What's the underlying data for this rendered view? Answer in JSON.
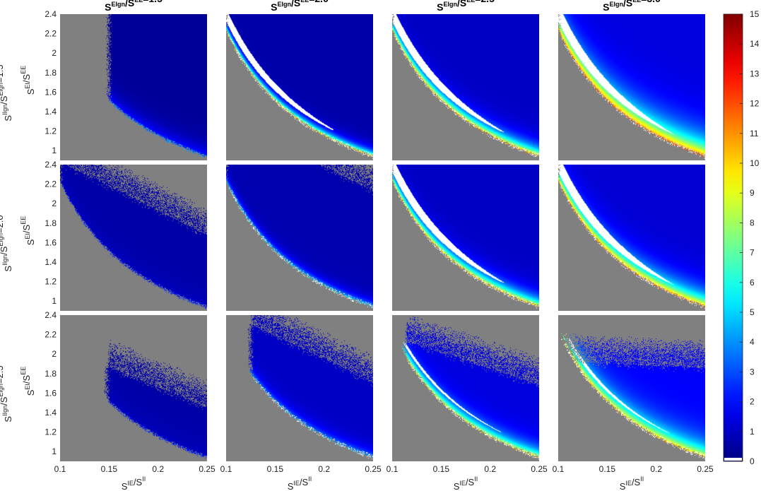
{
  "chart_data": {
    "type": "heatmap",
    "layout": "3x4 grid of panels",
    "col_titles": [
      {
        "base": "S",
        "sup1": "EIgn",
        "mid": "/S",
        "sup2": "EE",
        "tail": "=1.5"
      },
      {
        "base": "S",
        "sup1": "EIgn",
        "mid": "/S",
        "sup2": "EE",
        "tail": "=2.0"
      },
      {
        "base": "S",
        "sup1": "EIgn",
        "mid": "/S",
        "sup2": "EE",
        "tail": "=2.5"
      },
      {
        "base": "S",
        "sup1": "EIgn",
        "mid": "/S",
        "sup2": "EE",
        "tail": "=3.0"
      }
    ],
    "row_titles": [
      {
        "base": "S",
        "sup1": "IIgn",
        "mid": "/S",
        "sup2": "EIgn",
        "tail": "=1.5"
      },
      {
        "base": "S",
        "sup1": "IIgn",
        "mid": "/S",
        "sup2": "EIgn",
        "tail": "=2.0"
      },
      {
        "base": "S",
        "sup1": "IIgn",
        "mid": "/S",
        "sup2": "EIgn",
        "tail": "=2.5"
      }
    ],
    "xlabel": {
      "base": "S",
      "sup1": "IE",
      "mid": "/S",
      "sup2": "II"
    },
    "ylabel": {
      "base": "S",
      "sup1": "EI",
      "mid": "/S",
      "sup2": "EE"
    },
    "xlim": [
      0.1,
      0.25
    ],
    "ylim": [
      0.9,
      2.4
    ],
    "xticks": [
      0.1,
      0.15,
      0.2,
      0.25
    ],
    "xtick_labels": [
      "0.1",
      "0.15",
      "0.2",
      "0.25"
    ],
    "yticks": [
      1.0,
      1.2,
      1.4,
      1.6,
      1.8,
      2.0,
      2.2,
      2.4
    ],
    "ytick_labels": [
      "1",
      "1.2",
      "1.4",
      "1.6",
      "1.8",
      "2",
      "2.2",
      "2.4"
    ],
    "colorbar": {
      "colormap": "jet",
      "min": 0,
      "max": 15,
      "ticks": [
        0,
        1,
        2,
        3,
        4,
        5,
        6,
        7,
        8,
        9,
        10,
        11,
        12,
        13,
        14,
        15
      ],
      "tick_labels": [
        "0",
        "1",
        "2",
        "3",
        "4",
        "5",
        "6",
        "7",
        "8",
        "9",
        "10",
        "11",
        "12",
        "13",
        "14",
        "15"
      ]
    },
    "colors": {
      "invalid_region": "#808080",
      "saturated_region": "#ffffff",
      "low": "#00008f",
      "high": "#800000"
    },
    "panels": [
      {
        "row": 0,
        "col": 0,
        "boundary_k": 0.215,
        "boundary_c": 0.08,
        "upper_a": 4.4,
        "upper_b": 10.5,
        "edge_color": 2.5,
        "decay": 0.09,
        "floor": 0.35,
        "white_level": 0,
        "white_band": 0,
        "upper_start": 0.15
      },
      {
        "row": 0,
        "col": 1,
        "boundary_k": 0.215,
        "boundary_c": 0.08,
        "upper_a": 9.0,
        "upper_b": 0,
        "edge_color": 9.5,
        "decay": 0.05,
        "floor": 0.6,
        "white_level": 2,
        "white_band": 0.13,
        "upper_start": 0.1
      },
      {
        "row": 0,
        "col": 2,
        "boundary_k": 0.215,
        "boundary_c": 0.08,
        "upper_a": 9.0,
        "upper_b": 0,
        "edge_color": 10.5,
        "decay": 0.08,
        "floor": 1.0,
        "white_level": 3,
        "white_band": 0.16,
        "upper_start": 0.1
      },
      {
        "row": 0,
        "col": 3,
        "boundary_k": 0.215,
        "boundary_c": 0.08,
        "upper_a": 9.0,
        "upper_b": 0,
        "edge_color": 11.5,
        "decay": 0.16,
        "floor": 1.4,
        "white_level": 4,
        "white_band": 0.18,
        "upper_start": 0.1
      },
      {
        "row": 1,
        "col": 0,
        "boundary_k": 0.215,
        "boundary_c": 0.08,
        "upper_a": 2.55,
        "upper_b": 5.0,
        "edge_color": 1.0,
        "decay": 0.1,
        "floor": 0.6,
        "white_level": 0,
        "white_band": 0,
        "upper_start": 0.1
      },
      {
        "row": 1,
        "col": 1,
        "boundary_k": 0.215,
        "boundary_c": 0.08,
        "upper_a": 3.0,
        "upper_b": 5.0,
        "edge_color": 5.0,
        "decay": 0.05,
        "floor": 0.7,
        "white_level": 0,
        "white_band": 0,
        "upper_start": 0.1
      },
      {
        "row": 1,
        "col": 2,
        "boundary_k": 0.215,
        "boundary_c": 0.08,
        "upper_a": 9.0,
        "upper_b": 0,
        "edge_color": 10.0,
        "decay": 0.08,
        "floor": 1.0,
        "white_level": 3,
        "white_band": 0.16,
        "upper_start": 0.1
      },
      {
        "row": 1,
        "col": 3,
        "boundary_k": 0.215,
        "boundary_c": 0.08,
        "upper_a": 9.0,
        "upper_b": 0,
        "edge_color": 11.0,
        "decay": 0.12,
        "floor": 1.2,
        "white_level": 4,
        "white_band": 0.18,
        "upper_start": 0.1
      },
      {
        "row": 2,
        "col": 0,
        "boundary_k": 0.215,
        "boundary_c": 0.08,
        "upper_a": 2.2,
        "upper_b": 4.2,
        "edge_color": 1.0,
        "decay": 0.1,
        "floor": 0.6,
        "white_level": 0,
        "white_band": 0,
        "upper_start": 0.148
      },
      {
        "row": 2,
        "col": 1,
        "boundary_k": 0.215,
        "boundary_c": 0.08,
        "upper_a": 2.55,
        "upper_b": 4.8,
        "edge_color": 4.0,
        "decay": 0.06,
        "floor": 1.0,
        "white_level": 0,
        "white_band": 0,
        "upper_start": 0.125
      },
      {
        "row": 2,
        "col": 2,
        "boundary_k": 0.215,
        "boundary_c": 0.08,
        "upper_a": 2.3,
        "upper_b": 3.3,
        "edge_color": 9.0,
        "decay": 0.08,
        "floor": 1.4,
        "white_level": 3,
        "white_band": 0.05,
        "upper_start": 0.113
      },
      {
        "row": 2,
        "col": 3,
        "boundary_k": 0.215,
        "boundary_c": 0.08,
        "upper_a": 2.05,
        "upper_b": 0.5,
        "edge_color": 10.0,
        "decay": 0.12,
        "floor": 1.8,
        "white_level": 4,
        "white_band": 0.06,
        "upper_start": 0.1
      }
    ]
  }
}
